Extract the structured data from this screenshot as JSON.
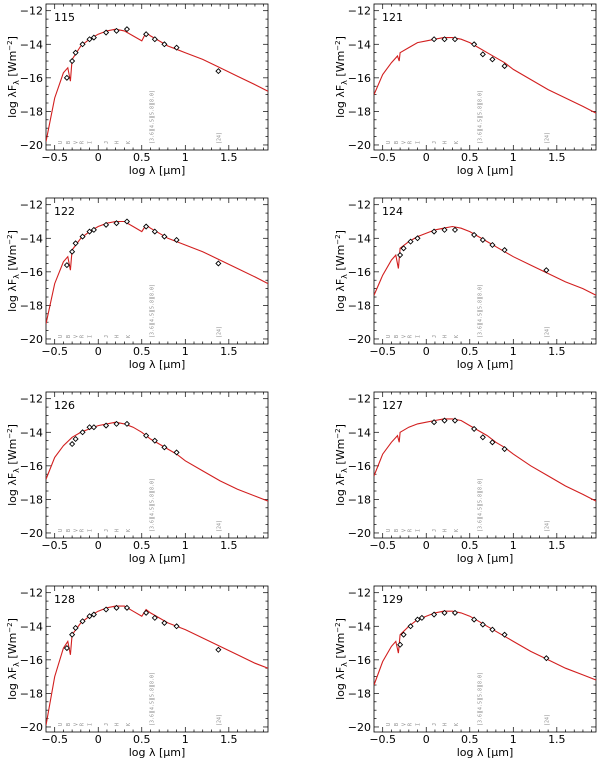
{
  "colors": {
    "model": "#d21f1f",
    "axis": "#000000",
    "band_text": "#8a8a8a",
    "points": "#000000"
  },
  "labels": {
    "xlabel": "log λ [μm]",
    "ylabel_main": "log λF",
    "ylabel_sub": "λ",
    "ylabel_unit": "[Wm",
    "ylabel_exp": "−2",
    "ylabel_close": "]"
  },
  "axes": {
    "xlim": [
      -0.6,
      1.95
    ],
    "ylim": [
      -20.3,
      -11.6
    ],
    "xticks": [
      -0.5,
      0,
      0.5,
      1,
      1.5
    ],
    "xtick_labels": [
      "−0.5",
      "0",
      "0.5",
      "1",
      "1.5"
    ],
    "yticks": [
      -20,
      -18,
      -16,
      -14,
      -12
    ],
    "ytick_labels": [
      "−20",
      "−18",
      "−16",
      "−14",
      "−12"
    ]
  },
  "bands_optical": [
    "U",
    "B",
    "V",
    "R",
    "I",
    "J",
    "H",
    "K"
  ],
  "bands_optical_x": [
    -0.44,
    -0.35,
    -0.26,
    -0.19,
    -0.1,
    0.09,
    0.21,
    0.34
  ],
  "bands_irac": [
    "[3.6]",
    "[4.5]",
    "[5.8]",
    "[8.0]"
  ],
  "band_mips": "[24]",
  "bands_irac_x": 0.61,
  "band_mips_x": 1.38,
  "chart_data": [
    {
      "type": "line",
      "title": "115",
      "model": {
        "x": [
          -0.6,
          -0.5,
          -0.4,
          -0.35,
          -0.32,
          -0.3,
          -0.2,
          -0.1,
          0,
          0.1,
          0.2,
          0.3,
          0.4,
          0.5,
          0.55,
          0.6,
          0.7,
          0.8,
          0.9,
          1.0,
          1.2,
          1.4,
          1.6,
          1.8,
          1.95
        ],
        "y": [
          -19.8,
          -17.2,
          -15.7,
          -15.4,
          -16.2,
          -14.9,
          -14.1,
          -13.7,
          -13.4,
          -13.2,
          -13.1,
          -13.2,
          -13.5,
          -13.8,
          -13.3,
          -13.5,
          -13.8,
          -14.1,
          -14.3,
          -14.5,
          -14.9,
          -15.4,
          -15.9,
          -16.4,
          -16.8
        ]
      },
      "points": {
        "x": [
          -0.36,
          -0.3,
          -0.26,
          -0.18,
          -0.1,
          -0.05,
          0.09,
          0.21,
          0.33,
          0.55,
          0.65,
          0.76,
          0.9,
          1.38
        ],
        "y": [
          -16.0,
          -15.0,
          -14.5,
          -14.0,
          -13.7,
          -13.6,
          -13.3,
          -13.2,
          -13.1,
          -13.4,
          -13.7,
          -14.0,
          -14.2,
          -15.6
        ]
      }
    },
    {
      "type": "line",
      "title": "121",
      "model": {
        "x": [
          -0.6,
          -0.5,
          -0.4,
          -0.33,
          -0.31,
          -0.3,
          -0.2,
          -0.1,
          0,
          0.1,
          0.2,
          0.3,
          0.4,
          0.5,
          0.6,
          0.7,
          0.8,
          0.9,
          1.0,
          1.2,
          1.4,
          1.6,
          1.8,
          1.95
        ],
        "y": [
          -17.0,
          -15.8,
          -15.1,
          -14.7,
          -15.0,
          -14.5,
          -14.2,
          -13.9,
          -13.8,
          -13.7,
          -13.6,
          -13.6,
          -13.7,
          -13.9,
          -14.2,
          -14.5,
          -14.8,
          -15.1,
          -15.5,
          -16.1,
          -16.7,
          -17.2,
          -17.7,
          -18.1
        ]
      },
      "points": {
        "x": [
          0.09,
          0.21,
          0.33,
          0.55,
          0.65,
          0.76,
          0.9
        ],
        "y": [
          -13.7,
          -13.7,
          -13.7,
          -14.0,
          -14.6,
          -14.9,
          -15.3
        ]
      }
    },
    {
      "type": "line",
      "title": "122",
      "model": {
        "x": [
          -0.6,
          -0.5,
          -0.4,
          -0.35,
          -0.32,
          -0.3,
          -0.2,
          -0.1,
          0,
          0.1,
          0.2,
          0.3,
          0.4,
          0.5,
          0.55,
          0.6,
          0.7,
          0.8,
          0.9,
          1.0,
          1.2,
          1.4,
          1.6,
          1.8,
          1.95
        ],
        "y": [
          -19.1,
          -16.7,
          -15.4,
          -15.1,
          -15.9,
          -14.7,
          -14.0,
          -13.6,
          -13.3,
          -13.1,
          -13.0,
          -13.0,
          -13.3,
          -13.6,
          -13.2,
          -13.4,
          -13.7,
          -14.0,
          -14.2,
          -14.4,
          -14.8,
          -15.3,
          -15.8,
          -16.3,
          -16.7
        ]
      },
      "points": {
        "x": [
          -0.36,
          -0.3,
          -0.26,
          -0.18,
          -0.1,
          -0.05,
          0.09,
          0.21,
          0.33,
          0.55,
          0.65,
          0.76,
          0.9,
          1.38
        ],
        "y": [
          -15.6,
          -14.8,
          -14.3,
          -13.9,
          -13.6,
          -13.5,
          -13.2,
          -13.1,
          -13.0,
          -13.3,
          -13.6,
          -13.9,
          -14.1,
          -15.5
        ]
      }
    },
    {
      "type": "line",
      "title": "124",
      "model": {
        "x": [
          -0.6,
          -0.5,
          -0.4,
          -0.35,
          -0.32,
          -0.3,
          -0.2,
          -0.1,
          0,
          0.1,
          0.2,
          0.3,
          0.4,
          0.5,
          0.6,
          0.7,
          0.8,
          0.9,
          1.0,
          1.2,
          1.4,
          1.6,
          1.8,
          1.95
        ],
        "y": [
          -17.4,
          -16.2,
          -15.3,
          -15.0,
          -15.8,
          -14.6,
          -14.2,
          -13.9,
          -13.7,
          -13.5,
          -13.4,
          -13.3,
          -13.4,
          -13.6,
          -13.9,
          -14.2,
          -14.5,
          -14.8,
          -15.1,
          -15.6,
          -16.1,
          -16.6,
          -17.0,
          -17.4
        ]
      },
      "points": {
        "x": [
          -0.3,
          -0.26,
          -0.18,
          -0.1,
          0.09,
          0.21,
          0.33,
          0.55,
          0.65,
          0.76,
          0.9,
          1.38
        ],
        "y": [
          -15.0,
          -14.6,
          -14.2,
          -14.0,
          -13.6,
          -13.5,
          -13.5,
          -13.8,
          -14.1,
          -14.4,
          -14.7,
          -15.9
        ]
      }
    },
    {
      "type": "line",
      "title": "126",
      "model": {
        "x": [
          -0.6,
          -0.5,
          -0.4,
          -0.3,
          -0.2,
          -0.1,
          0,
          0.1,
          0.2,
          0.3,
          0.4,
          0.5,
          0.6,
          0.7,
          0.8,
          0.9,
          1.0,
          1.2,
          1.4,
          1.6,
          1.8,
          1.95
        ],
        "y": [
          -16.8,
          -15.5,
          -14.8,
          -14.3,
          -14.0,
          -13.8,
          -13.6,
          -13.5,
          -13.4,
          -13.5,
          -13.7,
          -14.0,
          -14.4,
          -14.7,
          -15.0,
          -15.3,
          -15.7,
          -16.3,
          -16.9,
          -17.4,
          -17.8,
          -18.1
        ]
      },
      "points": {
        "x": [
          -0.3,
          -0.26,
          -0.18,
          -0.1,
          -0.05,
          0.09,
          0.21,
          0.33,
          0.55,
          0.65,
          0.76,
          0.9
        ],
        "y": [
          -14.7,
          -14.4,
          -14.0,
          -13.7,
          -13.7,
          -13.6,
          -13.5,
          -13.5,
          -14.2,
          -14.5,
          -14.9,
          -15.2
        ]
      }
    },
    {
      "type": "line",
      "title": "127",
      "model": {
        "x": [
          -0.6,
          -0.5,
          -0.4,
          -0.33,
          -0.31,
          -0.3,
          -0.2,
          -0.1,
          0,
          0.1,
          0.2,
          0.3,
          0.4,
          0.5,
          0.6,
          0.7,
          0.8,
          0.9,
          1.0,
          1.2,
          1.4,
          1.6,
          1.8,
          1.95
        ],
        "y": [
          -16.6,
          -15.3,
          -14.6,
          -14.2,
          -14.6,
          -14.0,
          -13.7,
          -13.5,
          -13.4,
          -13.3,
          -13.2,
          -13.2,
          -13.3,
          -13.6,
          -13.9,
          -14.2,
          -14.6,
          -14.9,
          -15.3,
          -16.0,
          -16.6,
          -17.2,
          -17.7,
          -18.1
        ]
      },
      "points": {
        "x": [
          0.09,
          0.21,
          0.33,
          0.55,
          0.65,
          0.76,
          0.9
        ],
        "y": [
          -13.4,
          -13.3,
          -13.3,
          -13.8,
          -14.3,
          -14.6,
          -15.0
        ]
      }
    },
    {
      "type": "line",
      "title": "128",
      "model": {
        "x": [
          -0.6,
          -0.5,
          -0.4,
          -0.35,
          -0.32,
          -0.3,
          -0.2,
          -0.1,
          0,
          0.1,
          0.2,
          0.3,
          0.4,
          0.5,
          0.55,
          0.6,
          0.7,
          0.8,
          0.9,
          1.0,
          1.2,
          1.4,
          1.6,
          1.8,
          1.95
        ],
        "y": [
          -19.9,
          -17.0,
          -15.3,
          -14.9,
          -15.7,
          -14.5,
          -13.8,
          -13.4,
          -13.1,
          -12.9,
          -12.8,
          -12.8,
          -13.1,
          -13.4,
          -13.0,
          -13.2,
          -13.5,
          -13.8,
          -14.0,
          -14.2,
          -14.7,
          -15.2,
          -15.7,
          -16.2,
          -16.5
        ]
      },
      "points": {
        "x": [
          -0.36,
          -0.3,
          -0.26,
          -0.18,
          -0.1,
          -0.05,
          0.09,
          0.21,
          0.33,
          0.55,
          0.65,
          0.76,
          0.9,
          1.38
        ],
        "y": [
          -15.3,
          -14.5,
          -14.1,
          -13.7,
          -13.4,
          -13.3,
          -13.0,
          -12.9,
          -12.9,
          -13.2,
          -13.5,
          -13.8,
          -14.0,
          -15.4
        ]
      }
    },
    {
      "type": "line",
      "title": "129",
      "model": {
        "x": [
          -0.6,
          -0.5,
          -0.4,
          -0.35,
          -0.32,
          -0.3,
          -0.2,
          -0.1,
          0,
          0.1,
          0.2,
          0.3,
          0.4,
          0.5,
          0.6,
          0.7,
          0.8,
          0.9,
          1.0,
          1.2,
          1.4,
          1.6,
          1.8,
          1.95
        ],
        "y": [
          -17.5,
          -16.1,
          -15.2,
          -14.9,
          -15.6,
          -14.5,
          -14.0,
          -13.6,
          -13.4,
          -13.2,
          -13.1,
          -13.1,
          -13.2,
          -13.4,
          -13.7,
          -14.0,
          -14.3,
          -14.6,
          -14.9,
          -15.5,
          -16.0,
          -16.5,
          -16.9,
          -17.2
        ]
      },
      "points": {
        "x": [
          -0.3,
          -0.26,
          -0.18,
          -0.1,
          -0.05,
          0.09,
          0.21,
          0.33,
          0.55,
          0.65,
          0.76,
          0.9,
          1.38
        ],
        "y": [
          -15.1,
          -14.5,
          -14.0,
          -13.6,
          -13.5,
          -13.3,
          -13.2,
          -13.2,
          -13.6,
          -13.9,
          -14.2,
          -14.5,
          -15.9
        ]
      }
    }
  ]
}
